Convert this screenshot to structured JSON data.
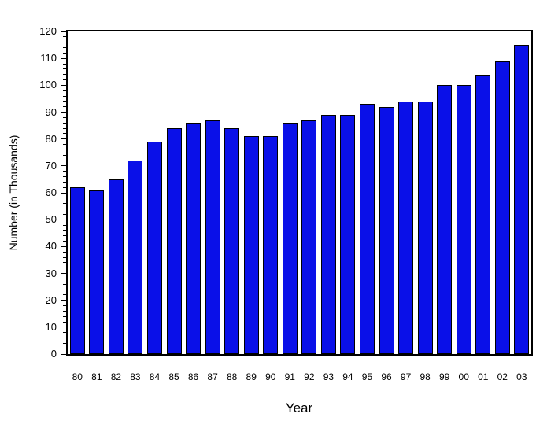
{
  "chart_data": {
    "type": "bar",
    "title": "",
    "xlabel": "Year",
    "ylabel": "Number (in Thousands)",
    "categories": [
      "80",
      "81",
      "82",
      "83",
      "84",
      "85",
      "86",
      "87",
      "88",
      "89",
      "90",
      "91",
      "92",
      "93",
      "94",
      "95",
      "96",
      "97",
      "98",
      "99",
      "00",
      "01",
      "02",
      "03"
    ],
    "values": [
      62,
      61,
      65,
      72,
      79,
      84,
      86,
      87,
      84,
      81,
      81,
      86,
      87,
      89,
      89,
      93,
      92,
      94,
      94,
      100,
      100,
      104,
      109,
      115
    ],
    "ylim": [
      0,
      120
    ],
    "ytick_step": 10,
    "yminor_step": 2,
    "ytick_labels": [
      "0",
      "10",
      "20",
      "30",
      "40",
      "50",
      "60",
      "70",
      "80",
      "90",
      "100",
      "110",
      "120"
    ],
    "bar_color": "#0a10e8",
    "bar_edge_color": "#000000",
    "axis_color": "#000000",
    "grid": false,
    "legend": null
  }
}
